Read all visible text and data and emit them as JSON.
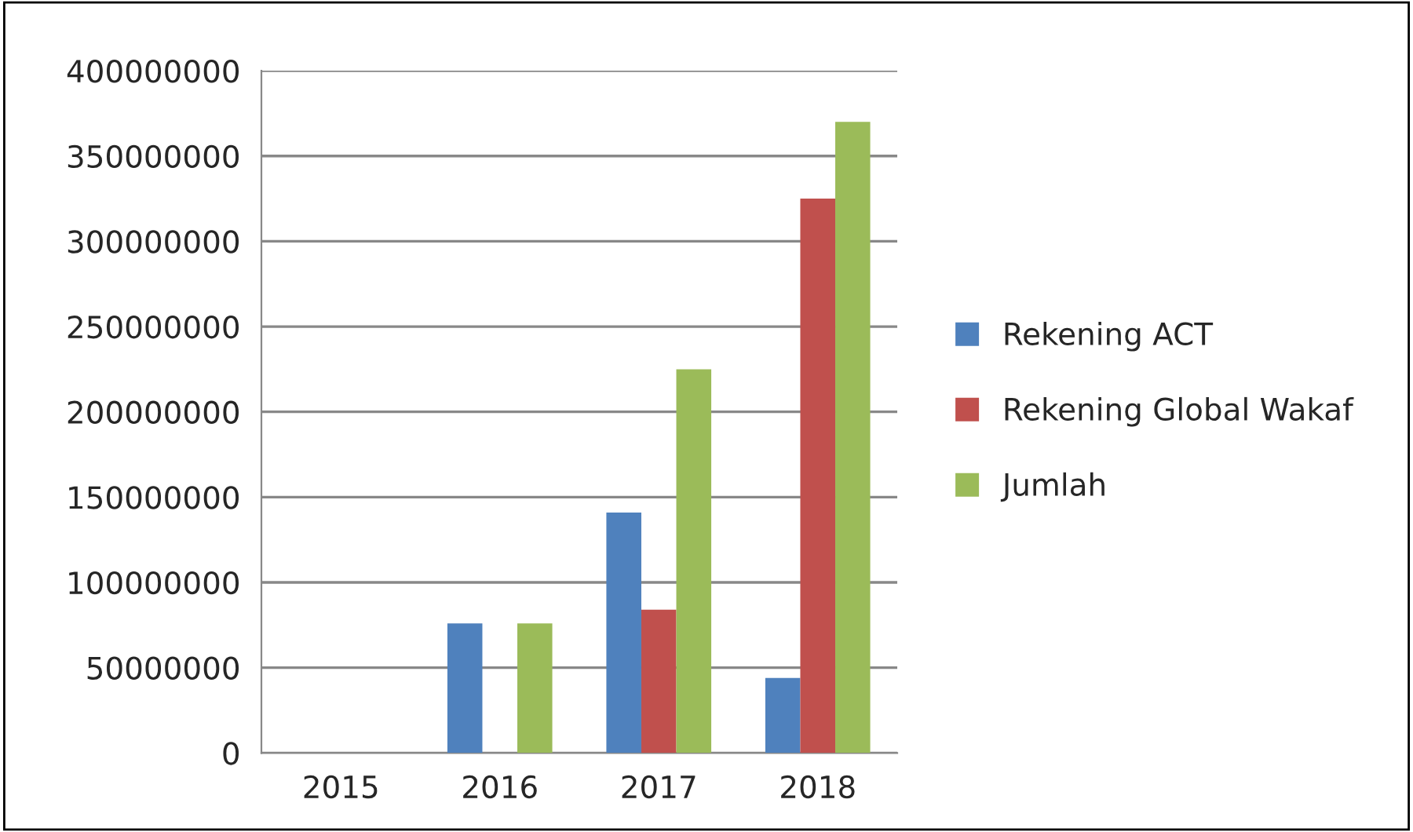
{
  "chart_data": {
    "type": "bar",
    "categories": [
      "2015",
      "2016",
      "2017",
      "2018"
    ],
    "series": [
      {
        "name": "Rekening ACT",
        "color": "#4f81bd",
        "values": [
          0,
          76000000,
          141000000,
          44000000
        ]
      },
      {
        "name": "Rekening Global Wakaf",
        "color": "#c0504d",
        "values": [
          null,
          null,
          84000000,
          325000000
        ]
      },
      {
        "name": "Jumlah",
        "color": "#9bbb59",
        "values": [
          0,
          76000000,
          225000000,
          370000000
        ]
      }
    ],
    "ylim": [
      0,
      400000000
    ],
    "yticks": [
      0,
      50000000,
      100000000,
      150000000,
      200000000,
      250000000,
      300000000,
      350000000,
      400000000
    ],
    "grid": "y",
    "legend": "right"
  }
}
